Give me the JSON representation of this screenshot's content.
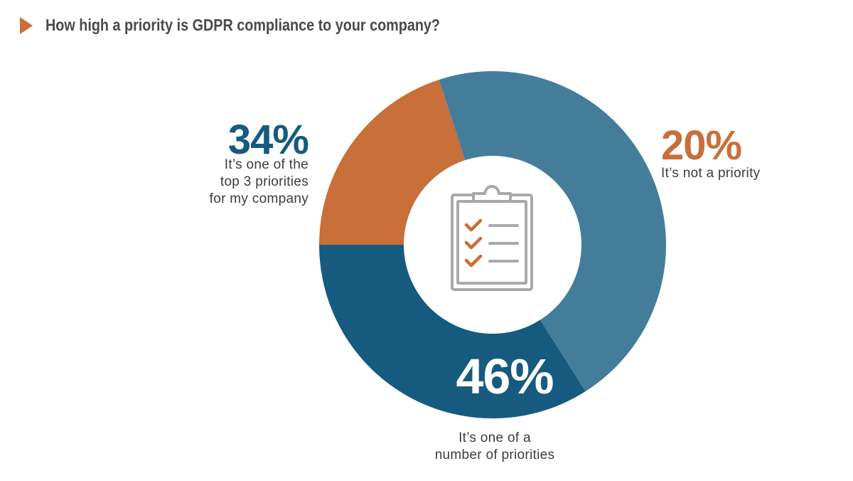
{
  "title": "How high a priority is GDPR compliance to your company?",
  "chart_data": {
    "type": "pie",
    "donut": true,
    "slices": [
      {
        "value": 34,
        "pct_label": "34%",
        "description": "It’s one of the top 3 priorities for my company",
        "description_lines": [
          "It’s one of the",
          "top 3 priorities",
          "for my company"
        ],
        "color": "#165b7f"
      },
      {
        "value": 20,
        "pct_label": "20%",
        "description": "It’s not a priority",
        "description_lines": [
          "It’s not a priority"
        ],
        "color": "#c96f3a"
      },
      {
        "value": 46,
        "pct_label": "46%",
        "description": "It’s one of a number of priorities",
        "description_lines": [
          "It’s one of a",
          "number of priorities"
        ],
        "color": "#447d9a"
      }
    ],
    "center_icon": "clipboard-checklist-icon"
  },
  "colors": {
    "accent": "#c96f3a",
    "dark_blue": "#165b7f",
    "mid_blue": "#447d9a",
    "icon_gray": "#a9a9a9"
  }
}
